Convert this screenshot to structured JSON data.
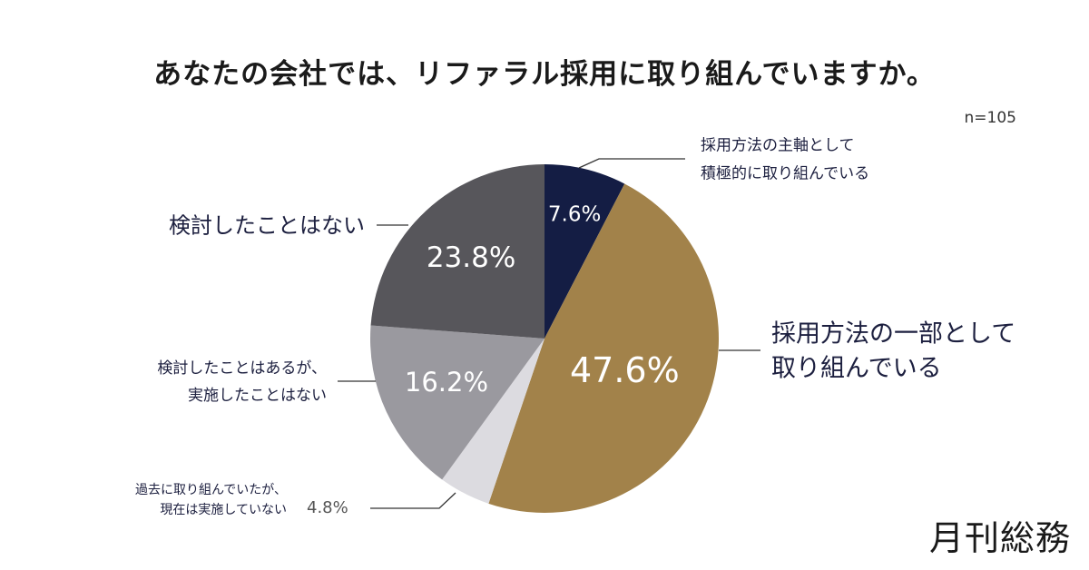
{
  "title": "あなたの会社では、リファラル採用に取り組んでいますか。",
  "sample_size": "n=105",
  "logo": "月刊総務",
  "chart_data": {
    "type": "pie",
    "unit": "%",
    "slices": [
      {
        "label_lines": [
          "採用方法の主軸として",
          "積極的に取り組んでいる"
        ],
        "value": 7.6,
        "display": "7.6%",
        "color": "#141d44"
      },
      {
        "label_lines": [
          "採用方法の一部として",
          "取り組んでいる"
        ],
        "value": 47.6,
        "display": "47.6%",
        "color": "#a2824a"
      },
      {
        "label_lines": [
          "過去に取り組んでいたが、",
          "現在は実施していない"
        ],
        "value": 4.8,
        "display": "4.8%",
        "color": "#dcdbe0"
      },
      {
        "label_lines": [
          "検討したことはあるが、",
          "実施したことはない"
        ],
        "value": 16.2,
        "display": "16.2%",
        "color": "#9a999f"
      },
      {
        "label_lines": [
          "検討したことはない"
        ],
        "value": 23.8,
        "display": "23.8%",
        "color": "#57565b"
      }
    ]
  }
}
